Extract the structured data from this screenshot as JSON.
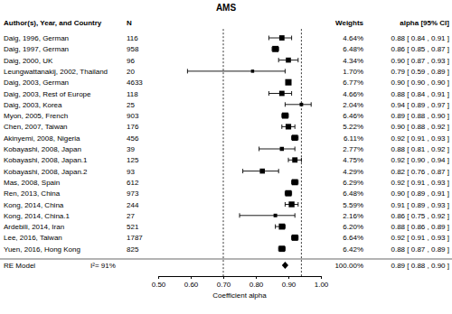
{
  "chart_data": {
    "type": "forest",
    "title": "AMS",
    "x_label": "Coefficient alpha",
    "columns": [
      "Author(s), Year, and Country",
      "N",
      "Weights",
      "alpha [95% CI]"
    ],
    "categories": [
      "Daig, 1996, German",
      "Daig, 1997, German",
      "Daig, 2000, UK",
      "Leungwattanakij, 2002, Thailand",
      "Daig, 2003, German",
      "Daig, 2003, Rest of Europe",
      "Daig, 2003, Korea",
      "Myon, 2005, French",
      "Chen, 2007, Taiwan",
      "Akinyemi, 2008, Nigeria",
      "Kobayashi, 2008, Japan",
      "Kobayashi, 2008, Japan.1",
      "Kobayashi, 2008, Japan.2",
      "Mas, 2008, Spain",
      "Ren, 2013, China",
      "Kong, 2014, China",
      "Kong, 2014, China.1",
      "Ardebili, 2014, Iran",
      "Lee, 2016, Taiwan",
      "Yuen, 2016, Hong Kong"
    ],
    "n": [
      116,
      958,
      96,
      20,
      4633,
      118,
      25,
      903,
      176,
      456,
      39,
      125,
      93,
      612,
      973,
      244,
      27,
      521,
      1787,
      825
    ],
    "weights": [
      4.64,
      6.48,
      4.34,
      1.7,
      6.77,
      4.66,
      2.04,
      6.46,
      5.22,
      6.11,
      2.77,
      4.75,
      4.29,
      6.29,
      6.48,
      5.59,
      2.16,
      6.2,
      6.64,
      6.42
    ],
    "weight_labels": [
      "4.64%",
      "6.48%",
      "4.34%",
      "1.70%",
      "6.77%",
      "4.66%",
      "2.04%",
      "6.46%",
      "5.22%",
      "6.11%",
      "2.77%",
      "4.75%",
      "4.29%",
      "6.29%",
      "6.48%",
      "5.59%",
      "2.16%",
      "6.20%",
      "6.64%",
      "6.42%"
    ],
    "values": [
      0.88,
      0.86,
      0.9,
      0.79,
      0.9,
      0.88,
      0.94,
      0.89,
      0.9,
      0.92,
      0.88,
      0.92,
      0.82,
      0.92,
      0.9,
      0.91,
      0.86,
      0.88,
      0.92,
      0.88
    ],
    "ci_lower": [
      0.84,
      0.85,
      0.87,
      0.59,
      0.9,
      0.84,
      0.89,
      0.88,
      0.88,
      0.91,
      0.81,
      0.9,
      0.76,
      0.91,
      0.89,
      0.89,
      0.75,
      0.86,
      0.91,
      0.87
    ],
    "ci_upper": [
      0.91,
      0.87,
      0.93,
      0.89,
      0.9,
      0.91,
      0.97,
      0.9,
      0.92,
      0.93,
      0.92,
      0.94,
      0.87,
      0.93,
      0.91,
      0.93,
      0.92,
      0.89,
      0.93,
      0.89
    ],
    "value_labels": [
      "0.88 [ 0.84 , 0.91 ]",
      "0.86 [ 0.85 , 0.87 ]",
      "0.90 [ 0.87 , 0.93 ]",
      "0.79 [ 0.59 , 0.89 ]",
      "0.90 [ 0.90 , 0.90 ]",
      "0.88 [ 0.84 , 0.91 ]",
      "0.94 [ 0.89 , 0.97 ]",
      "0.89 [ 0.88 , 0.90 ]",
      "0.90 [ 0.88 , 0.92 ]",
      "0.92 [ 0.91 , 0.93 ]",
      "0.88 [ 0.81 , 0.92 ]",
      "0.92 [ 0.90 , 0.94 ]",
      "0.82 [ 0.76 , 0.87 ]",
      "0.92 [ 0.91 , 0.93 ]",
      "0.90 [ 0.89 , 0.91 ]",
      "0.91 [ 0.89 , 0.93 ]",
      "0.86 [ 0.75 , 0.92 ]",
      "0.88 [ 0.86 , 0.89 ]",
      "0.92 [ 0.91 , 0.93 ]",
      "0.88 [ 0.87 , 0.89 ]"
    ],
    "summary": {
      "label": "RE Model",
      "annotation": "I²= 91%",
      "weight": 100,
      "weight_label": "100.00%",
      "value": 0.89,
      "ci_lower": 0.88,
      "ci_upper": 0.9,
      "value_label": "0.89 [ 0.88 , 0.90 ]"
    },
    "reference_lines": [
      0.7,
      0.94
    ],
    "line_style": "dotted",
    "color": "#000000",
    "xlim": [
      0.5,
      1.0
    ],
    "xticks": [
      {
        "value": 0.5,
        "label": "0.50"
      },
      {
        "value": 0.6,
        "label": "0.60"
      },
      {
        "value": 0.7,
        "label": "0.70"
      },
      {
        "value": 0.8,
        "label": "0.80"
      },
      {
        "value": 0.9,
        "label": "0.90"
      },
      {
        "value": 1.0,
        "label": "1.00"
      }
    ]
  }
}
